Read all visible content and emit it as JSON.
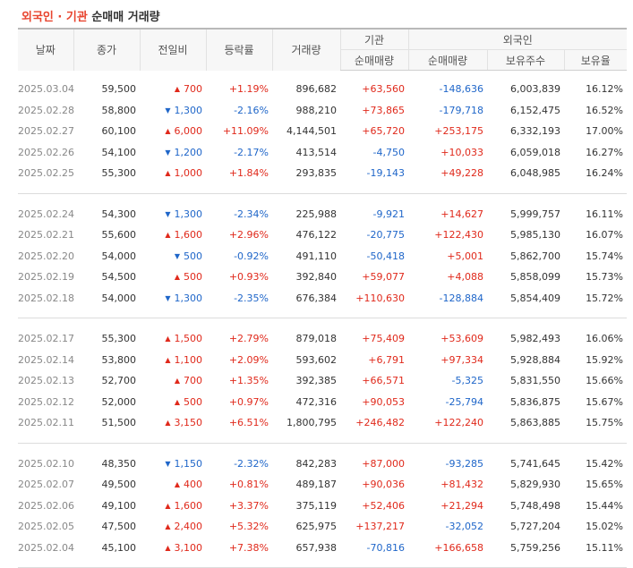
{
  "title": {
    "part1": "외국인",
    "dot": " · ",
    "part2": "기관",
    "rest": " 순매매 거래량"
  },
  "headers": {
    "date": "날짜",
    "close": "종가",
    "change": "전일비",
    "rate": "등락률",
    "volume": "거래량",
    "institution": "기관",
    "inst_net": "순매매량",
    "foreign": "외국인",
    "foreign_net": "순매매량",
    "holdings": "보유주수",
    "ratio": "보유율"
  },
  "colors": {
    "up": "#e0291b",
    "down": "#1f66c9",
    "title_accent": "#e8452f"
  },
  "arrows": {
    "up": "▲",
    "down": "▼"
  },
  "groups": [
    [
      {
        "date": "2025.03.04",
        "close": "59,500",
        "dir": "up",
        "change": "700",
        "rate": "+1.19%",
        "volume": "896,682",
        "inst": "+63,560",
        "foreign": "-148,636",
        "holdings": "6,003,839",
        "ratio": "16.12%"
      },
      {
        "date": "2025.02.28",
        "close": "58,800",
        "dir": "down",
        "change": "1,300",
        "rate": "-2.16%",
        "volume": "988,210",
        "inst": "+73,865",
        "foreign": "-179,718",
        "holdings": "6,152,475",
        "ratio": "16.52%"
      },
      {
        "date": "2025.02.27",
        "close": "60,100",
        "dir": "up",
        "change": "6,000",
        "rate": "+11.09%",
        "volume": "4,144,501",
        "inst": "+65,720",
        "foreign": "+253,175",
        "holdings": "6,332,193",
        "ratio": "17.00%"
      },
      {
        "date": "2025.02.26",
        "close": "54,100",
        "dir": "down",
        "change": "1,200",
        "rate": "-2.17%",
        "volume": "413,514",
        "inst": "-4,750",
        "foreign": "+10,033",
        "holdings": "6,059,018",
        "ratio": "16.27%"
      },
      {
        "date": "2025.02.25",
        "close": "55,300",
        "dir": "up",
        "change": "1,000",
        "rate": "+1.84%",
        "volume": "293,835",
        "inst": "-19,143",
        "foreign": "+49,228",
        "holdings": "6,048,985",
        "ratio": "16.24%"
      }
    ],
    [
      {
        "date": "2025.02.24",
        "close": "54,300",
        "dir": "down",
        "change": "1,300",
        "rate": "-2.34%",
        "volume": "225,988",
        "inst": "-9,921",
        "foreign": "+14,627",
        "holdings": "5,999,757",
        "ratio": "16.11%"
      },
      {
        "date": "2025.02.21",
        "close": "55,600",
        "dir": "up",
        "change": "1,600",
        "rate": "+2.96%",
        "volume": "476,122",
        "inst": "-20,775",
        "foreign": "+122,430",
        "holdings": "5,985,130",
        "ratio": "16.07%"
      },
      {
        "date": "2025.02.20",
        "close": "54,000",
        "dir": "down",
        "change": "500",
        "rate": "-0.92%",
        "volume": "491,110",
        "inst": "-50,418",
        "foreign": "+5,001",
        "holdings": "5,862,700",
        "ratio": "15.74%"
      },
      {
        "date": "2025.02.19",
        "close": "54,500",
        "dir": "up",
        "change": "500",
        "rate": "+0.93%",
        "volume": "392,840",
        "inst": "+59,077",
        "foreign": "+4,088",
        "holdings": "5,858,099",
        "ratio": "15.73%"
      },
      {
        "date": "2025.02.18",
        "close": "54,000",
        "dir": "down",
        "change": "1,300",
        "rate": "-2.35%",
        "volume": "676,384",
        "inst": "+110,630",
        "foreign": "-128,884",
        "holdings": "5,854,409",
        "ratio": "15.72%"
      }
    ],
    [
      {
        "date": "2025.02.17",
        "close": "55,300",
        "dir": "up",
        "change": "1,500",
        "rate": "+2.79%",
        "volume": "879,018",
        "inst": "+75,409",
        "foreign": "+53,609",
        "holdings": "5,982,493",
        "ratio": "16.06%"
      },
      {
        "date": "2025.02.14",
        "close": "53,800",
        "dir": "up",
        "change": "1,100",
        "rate": "+2.09%",
        "volume": "593,602",
        "inst": "+6,791",
        "foreign": "+97,334",
        "holdings": "5,928,884",
        "ratio": "15.92%"
      },
      {
        "date": "2025.02.13",
        "close": "52,700",
        "dir": "up",
        "change": "700",
        "rate": "+1.35%",
        "volume": "392,385",
        "inst": "+66,571",
        "foreign": "-5,325",
        "holdings": "5,831,550",
        "ratio": "15.66%"
      },
      {
        "date": "2025.02.12",
        "close": "52,000",
        "dir": "up",
        "change": "500",
        "rate": "+0.97%",
        "volume": "472,316",
        "inst": "+90,053",
        "foreign": "-25,794",
        "holdings": "5,836,875",
        "ratio": "15.67%"
      },
      {
        "date": "2025.02.11",
        "close": "51,500",
        "dir": "up",
        "change": "3,150",
        "rate": "+6.51%",
        "volume": "1,800,795",
        "inst": "+246,482",
        "foreign": "+122,240",
        "holdings": "5,863,885",
        "ratio": "15.75%"
      }
    ],
    [
      {
        "date": "2025.02.10",
        "close": "48,350",
        "dir": "down",
        "change": "1,150",
        "rate": "-2.32%",
        "volume": "842,283",
        "inst": "+87,000",
        "foreign": "-93,285",
        "holdings": "5,741,645",
        "ratio": "15.42%"
      },
      {
        "date": "2025.02.07",
        "close": "49,500",
        "dir": "up",
        "change": "400",
        "rate": "+0.81%",
        "volume": "489,187",
        "inst": "+90,036",
        "foreign": "+81,432",
        "holdings": "5,829,930",
        "ratio": "15.65%"
      },
      {
        "date": "2025.02.06",
        "close": "49,100",
        "dir": "up",
        "change": "1,600",
        "rate": "+3.37%",
        "volume": "375,119",
        "inst": "+52,406",
        "foreign": "+21,294",
        "holdings": "5,748,498",
        "ratio": "15.44%"
      },
      {
        "date": "2025.02.05",
        "close": "47,500",
        "dir": "up",
        "change": "2,400",
        "rate": "+5.32%",
        "volume": "625,975",
        "inst": "+137,217",
        "foreign": "-32,052",
        "holdings": "5,727,204",
        "ratio": "15.02%"
      },
      {
        "date": "2025.02.04",
        "close": "45,100",
        "dir": "up",
        "change": "3,100",
        "rate": "+7.38%",
        "volume": "657,938",
        "inst": "-70,816",
        "foreign": "+166,658",
        "holdings": "5,759,256",
        "ratio": "15.11%"
      }
    ]
  ]
}
